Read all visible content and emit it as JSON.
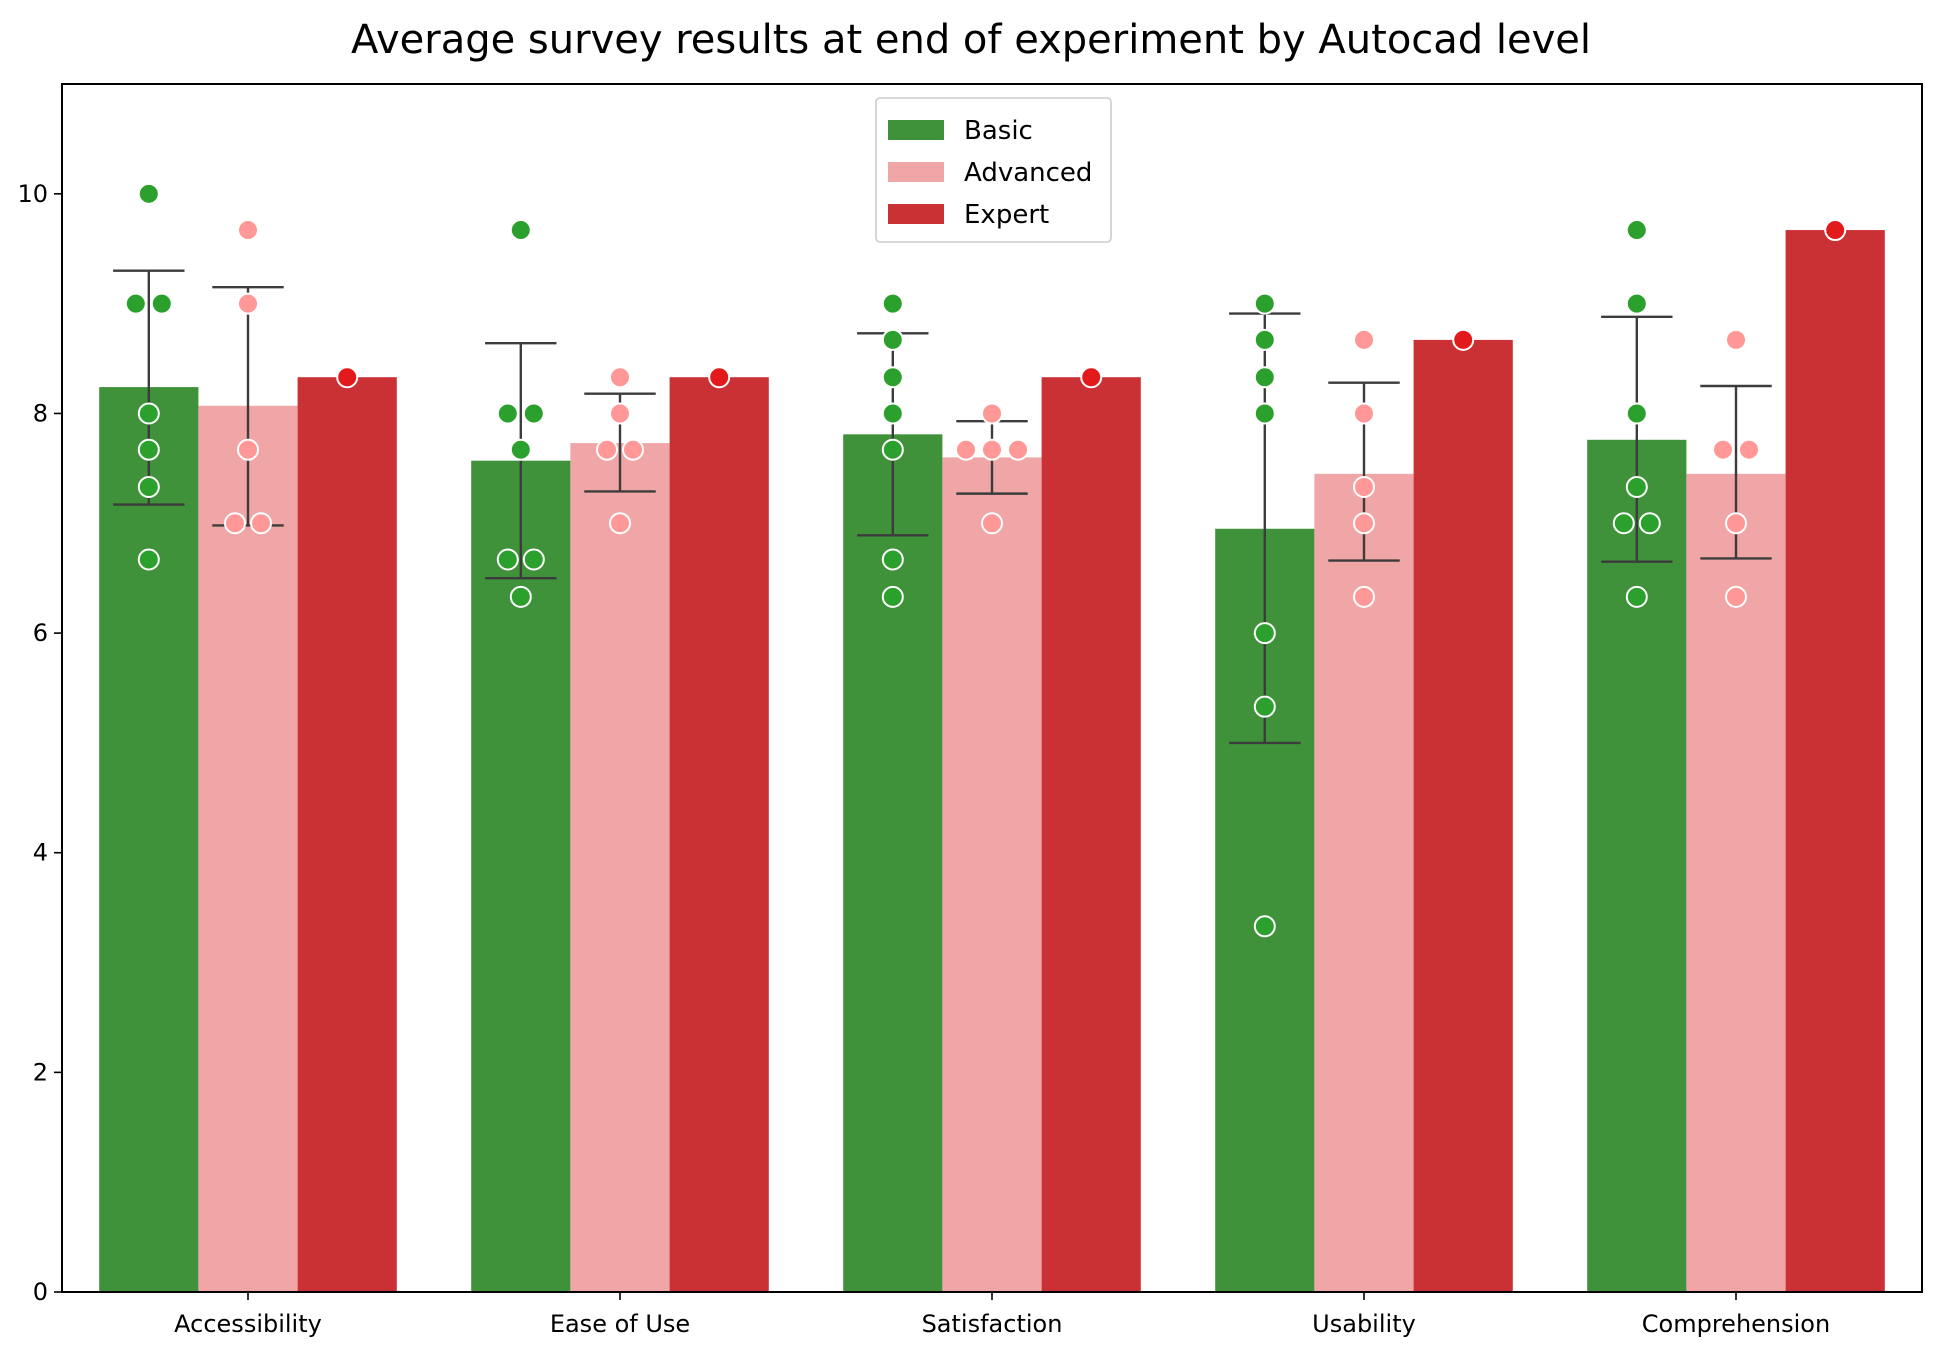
{
  "chart_data": {
    "type": "bar",
    "title": "Average survey results at end of experiment by Autocad level",
    "xlabel": "",
    "ylabel": "",
    "ylim": [
      0,
      11
    ],
    "yticks": [
      0,
      2,
      4,
      6,
      8,
      10
    ],
    "grid": false,
    "legend_position": "top-center",
    "categories": [
      "Accessibility",
      "Ease of Use",
      "Satisfaction",
      "Usability",
      "Comprehension"
    ],
    "series": [
      {
        "name": "Basic",
        "color": "#3f913a",
        "point_color": "#2ca02c",
        "values": [
          8.24,
          7.57,
          7.81,
          6.95,
          7.76
        ],
        "error_low": [
          7.17,
          6.5,
          6.89,
          5.0,
          6.65
        ],
        "error_high": [
          9.3,
          8.64,
          8.73,
          8.91,
          8.88
        ],
        "points": [
          [
            10,
            9,
            9,
            8,
            7.67,
            7.33,
            6.67
          ],
          [
            9.67,
            8,
            8,
            7.67,
            6.67,
            6.67,
            6.33
          ],
          [
            9,
            8.67,
            8.33,
            8,
            7.67,
            6.67,
            6.33
          ],
          [
            9,
            8.67,
            8.33,
            8,
            6,
            5.33,
            3.33
          ],
          [
            9.67,
            9,
            8,
            7.33,
            7,
            7,
            6.33
          ]
        ]
      },
      {
        "name": "Advanced",
        "color": "#f0a6a6",
        "point_color": "#ff9896",
        "values": [
          8.07,
          7.73,
          7.6,
          7.45,
          7.45
        ],
        "error_low": [
          6.98,
          7.29,
          7.27,
          6.66,
          6.68
        ],
        "error_high": [
          9.15,
          8.18,
          7.93,
          8.28,
          8.25
        ],
        "points": [
          [
            9.67,
            9,
            7.67,
            7,
            7
          ],
          [
            8.33,
            8,
            7.67,
            7.67,
            7
          ],
          [
            8,
            7.67,
            7.67,
            7.67,
            7
          ],
          [
            8.67,
            8,
            7.33,
            7,
            6.33
          ],
          [
            8.67,
            7.67,
            7.67,
            7,
            6.33
          ]
        ]
      },
      {
        "name": "Expert",
        "color": "#c93134",
        "point_color": "#e31a1c",
        "values": [
          8.33,
          8.33,
          8.33,
          8.67,
          9.67
        ],
        "error_low": [
          null,
          null,
          null,
          null,
          null
        ],
        "error_high": [
          null,
          null,
          null,
          null,
          null
        ],
        "points": [
          [
            8.33
          ],
          [
            8.33
          ],
          [
            8.33
          ],
          [
            8.67
          ],
          [
            9.67
          ]
        ]
      }
    ]
  }
}
